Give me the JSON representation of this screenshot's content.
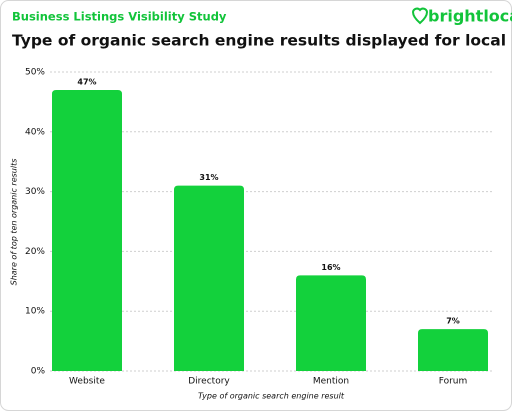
{
  "chart_data": {
    "type": "bar",
    "subtitle": "Business Listings Visibility Study",
    "brand": "brightlocal",
    "title": "Type of organic search engine results displayed for local searches",
    "y_label": "Share of top ten organic results",
    "x_label": "Type of organic search engine result",
    "categories": [
      "Website",
      "Directory",
      "Mention",
      "Forum"
    ],
    "values": [
      47,
      31,
      16,
      7
    ],
    "value_labels": [
      "47%",
      "31%",
      "16%",
      "7%"
    ],
    "color": "#13d13c",
    "ylim": [
      0,
      50
    ],
    "yticks": [
      {
        "value": 0,
        "label": "0%"
      },
      {
        "value": 10,
        "label": "10%"
      },
      {
        "value": 20,
        "label": "20%"
      },
      {
        "value": 30,
        "label": "30%"
      },
      {
        "value": 40,
        "label": "40%"
      },
      {
        "value": 50,
        "label": "50%"
      }
    ],
    "grid": true
  }
}
